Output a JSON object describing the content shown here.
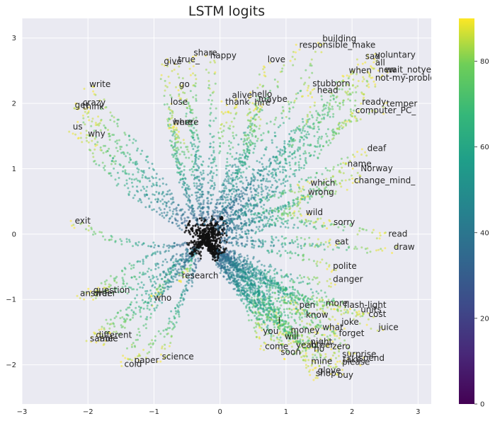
{
  "chart_data": {
    "type": "scatter",
    "title": "LSTM logits",
    "xlabel": "",
    "ylabel": "",
    "xlim": [
      -3,
      3.2
    ],
    "ylim": [
      -2.6,
      3.3
    ],
    "xticks": [
      -3,
      -2,
      -1,
      0,
      1,
      2,
      3
    ],
    "yticks": [
      -2,
      -1,
      0,
      1,
      2,
      3
    ],
    "grid": true,
    "background": "#eaeaf2",
    "colorbar": {
      "colormap": "viridis",
      "range": [
        0,
        90
      ],
      "ticks": [
        0,
        20,
        40,
        60,
        80
      ]
    },
    "center": [
      -0.25,
      -0.1
    ],
    "word_labels": [
      {
        "text": "building",
        "x": 1.55,
        "y": 2.95
      },
      {
        "text": "responsible_make",
        "x": 1.2,
        "y": 2.85
      },
      {
        "text": "share",
        "x": -0.4,
        "y": 2.73
      },
      {
        "text": "happy",
        "x": -0.15,
        "y": 2.69
      },
      {
        "text": "give",
        "x": -0.85,
        "y": 2.6
      },
      {
        "text": "_true_",
        "x": -0.7,
        "y": 2.63
      },
      {
        "text": "love",
        "x": 0.72,
        "y": 2.63
      },
      {
        "text": "sad",
        "x": 2.2,
        "y": 2.68
      },
      {
        "text": "voluntary",
        "x": 2.35,
        "y": 2.7
      },
      {
        "text": "all",
        "x": 2.35,
        "y": 2.58
      },
      {
        "text": "when",
        "x": 1.95,
        "y": 2.46
      },
      {
        "text": "new",
        "x": 2.4,
        "y": 2.47
      },
      {
        "text": "wait_notyet_",
        "x": 2.5,
        "y": 2.47
      },
      {
        "text": "not-my-problem",
        "x": 2.35,
        "y": 2.35
      },
      {
        "text": "write",
        "x": -1.98,
        "y": 2.25
      },
      {
        "text": "go",
        "x": -0.62,
        "y": 2.25
      },
      {
        "text": "stubborn",
        "x": 1.4,
        "y": 2.26
      },
      {
        "text": "head",
        "x": 1.47,
        "y": 2.16
      },
      {
        "text": "alive",
        "x": 0.18,
        "y": 2.08
      },
      {
        "text": "hello",
        "x": 0.48,
        "y": 2.1
      },
      {
        "text": "lose",
        "x": -0.75,
        "y": 1.98
      },
      {
        "text": "thank",
        "x": 0.08,
        "y": 1.98
      },
      {
        "text": "hire",
        "x": 0.52,
        "y": 1.97
      },
      {
        "text": "maybe",
        "x": 0.58,
        "y": 2.02
      },
      {
        "text": "ready",
        "x": 2.15,
        "y": 1.98
      },
      {
        "text": "temper",
        "x": 2.52,
        "y": 1.95
      },
      {
        "text": "computer_PC_",
        "x": 2.05,
        "y": 1.85
      },
      {
        "text": "get",
        "x": -2.2,
        "y": 1.93
      },
      {
        "text": "crazy",
        "x": -2.08,
        "y": 1.97
      },
      {
        "text": "think",
        "x": -2.08,
        "y": 1.91
      },
      {
        "text": "us",
        "x": -2.23,
        "y": 1.6
      },
      {
        "text": "where",
        "x": -0.72,
        "y": 1.67
      },
      {
        "text": "here",
        "x": -0.7,
        "y": 1.67
      },
      {
        "text": "why",
        "x": -2.0,
        "y": 1.49
      },
      {
        "text": "deaf",
        "x": 2.23,
        "y": 1.27
      },
      {
        "text": "name",
        "x": 1.93,
        "y": 1.03
      },
      {
        "text": "Norway",
        "x": 2.13,
        "y": 0.96
      },
      {
        "text": "change_mind_",
        "x": 2.03,
        "y": 0.78
      },
      {
        "text": "which",
        "x": 1.37,
        "y": 0.74
      },
      {
        "text": "wrong",
        "x": 1.33,
        "y": 0.6
      },
      {
        "text": "wild",
        "x": 1.3,
        "y": 0.29
      },
      {
        "text": "exit",
        "x": -2.2,
        "y": 0.16
      },
      {
        "text": "sorry",
        "x": 1.72,
        "y": 0.14
      },
      {
        "text": "read",
        "x": 2.55,
        "y": -0.04
      },
      {
        "text": "eat",
        "x": 1.74,
        "y": -0.16
      },
      {
        "text": "draw",
        "x": 2.63,
        "y": -0.24
      },
      {
        "text": "polite",
        "x": 1.71,
        "y": -0.53
      },
      {
        "text": "research",
        "x": -0.58,
        "y": -0.68
      },
      {
        "text": "danger",
        "x": 1.71,
        "y": -0.73
      },
      {
        "text": "question",
        "x": -1.92,
        "y": -0.9
      },
      {
        "text": "answer",
        "x": -2.12,
        "y": -0.95
      },
      {
        "text": "order",
        "x": -1.92,
        "y": -0.95
      },
      {
        "text": "who",
        "x": -1.0,
        "y": -1.02
      },
      {
        "text": "pen",
        "x": 1.2,
        "y": -1.13
      },
      {
        "text": "more",
        "x": 1.6,
        "y": -1.1
      },
      {
        "text": "flash-light",
        "x": 1.88,
        "y": -1.13
      },
      {
        "text": "units",
        "x": 2.13,
        "y": -1.2
      },
      {
        "text": "know",
        "x": 1.3,
        "y": -1.28
      },
      {
        "text": "cost",
        "x": 2.25,
        "y": -1.27
      },
      {
        "text": "l",
        "x": 0.88,
        "y": -1.37
      },
      {
        "text": "joke",
        "x": 1.84,
        "y": -1.39
      },
      {
        "text": "what",
        "x": 1.55,
        "y": -1.47
      },
      {
        "text": "juice",
        "x": 2.4,
        "y": -1.47
      },
      {
        "text": "you",
        "x": 0.65,
        "y": -1.53
      },
      {
        "text": "money",
        "x": 1.07,
        "y": -1.51
      },
      {
        "text": "forget",
        "x": 1.8,
        "y": -1.56
      },
      {
        "text": "will",
        "x": 0.98,
        "y": -1.61
      },
      {
        "text": "different",
        "x": -1.88,
        "y": -1.59
      },
      {
        "text": "same",
        "x": -1.97,
        "y": -1.64
      },
      {
        "text": "able",
        "x": -1.82,
        "y": -1.64
      },
      {
        "text": "night",
        "x": 1.37,
        "y": -1.69
      },
      {
        "text": "come",
        "x": 0.68,
        "y": -1.76
      },
      {
        "text": "yeah",
        "x": 1.15,
        "y": -1.74
      },
      {
        "text": "other",
        "x": 1.38,
        "y": -1.74
      },
      {
        "text": "zero",
        "x": 1.7,
        "y": -1.76
      },
      {
        "text": "no",
        "x": 1.42,
        "y": -1.8
      },
      {
        "text": "soon",
        "x": 0.92,
        "y": -1.85
      },
      {
        "text": "surprise",
        "x": 1.85,
        "y": -1.88
      },
      {
        "text": "science",
        "x": -0.88,
        "y": -1.92
      },
      {
        "text": "take",
        "x": 1.86,
        "y": -1.96
      },
      {
        "text": "spend",
        "x": 2.1,
        "y": -1.94
      },
      {
        "text": "paper",
        "x": -1.3,
        "y": -1.97
      },
      {
        "text": "mine",
        "x": 1.38,
        "y": -1.99
      },
      {
        "text": "please",
        "x": 1.85,
        "y": -2.0
      },
      {
        "text": "cold",
        "x": -1.45,
        "y": -2.03
      },
      {
        "text": "glove",
        "x": 1.48,
        "y": -2.13
      },
      {
        "text": "shop",
        "x": 1.45,
        "y": -2.17
      },
      {
        "text": "buy",
        "x": 1.78,
        "y": -2.2
      }
    ]
  }
}
